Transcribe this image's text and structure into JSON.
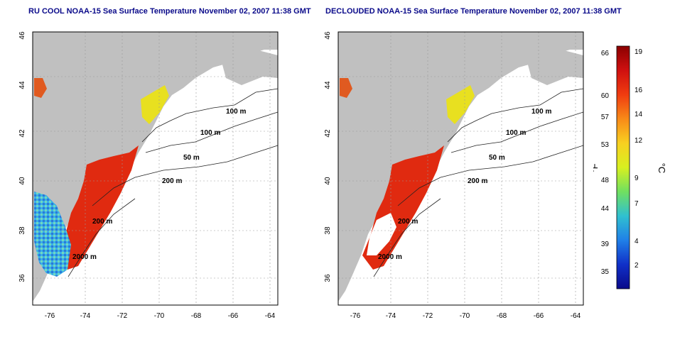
{
  "maps": [
    {
      "title": "RU COOL NOAA-15 Sea Surface Temperature November 02, 2007 11:38 GMT",
      "lat_ticks": [
        "46",
        "44",
        "42",
        "40",
        "38",
        "36"
      ],
      "lon_ticks": [
        "-76",
        "-74",
        "-72",
        "-70",
        "-68",
        "-66",
        "-64"
      ],
      "contour_labels": [
        "100 m",
        "100 m",
        "50 m",
        "200 m",
        "200 m",
        "2000 m"
      ]
    },
    {
      "title": "DECLOUDED NOAA-15 Sea Surface Temperature November 02, 2007 11:38 GMT",
      "lat_ticks": [
        "46",
        "44",
        "42",
        "40",
        "38",
        "36"
      ],
      "lon_ticks": [
        "-76",
        "-74",
        "-72",
        "-70",
        "-68",
        "-66",
        "-64"
      ],
      "contour_labels": [
        "100 m",
        "100 m",
        "50 m",
        "200 m",
        "200 m",
        "2000 m"
      ]
    }
  ],
  "colorbar": {
    "f_label": "°F",
    "c_label": "°C",
    "f_ticks": [
      "66",
      "60",
      "57",
      "53",
      "48",
      "44",
      "39",
      "35"
    ],
    "c_ticks": [
      "19",
      "16",
      "14",
      "12",
      "9",
      "7",
      "4",
      "2"
    ],
    "colors": [
      "#8b0000",
      "#d01010",
      "#f03c10",
      "#f88a18",
      "#f8d020",
      "#d8f020",
      "#70e060",
      "#30c0d0",
      "#2080e8",
      "#1030c8",
      "#0a0a8a"
    ]
  },
  "colors": {
    "land": "#c0c0c0",
    "sea": "#ffffff",
    "warm": "#e02a10",
    "cool": "#40b0e0",
    "title": "#0a0a8a"
  }
}
